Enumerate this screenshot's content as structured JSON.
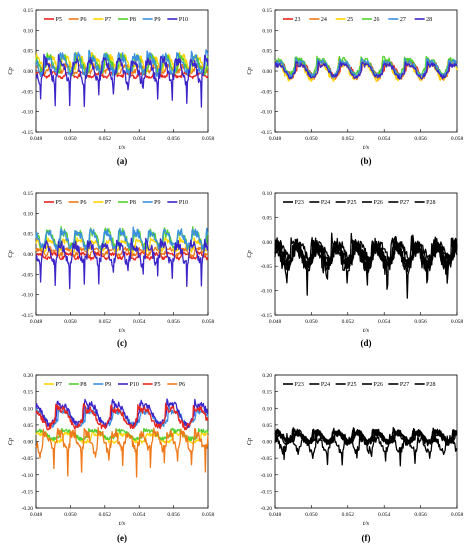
{
  "figure": {
    "panel_labels": [
      "(a)",
      "(b)",
      "(c)",
      "(d)",
      "(e)",
      "(f)"
    ]
  },
  "colors": {
    "P5": "#e8251f",
    "P6": "#f07a1a",
    "P7": "#ffd400",
    "P8": "#52d02e",
    "P9": "#3b8fe0",
    "P10": "#3b25c8",
    "23": "#e8251f",
    "24": "#f07a1a",
    "25": "#ffd400",
    "26": "#52d02e",
    "27": "#3b8fe0",
    "28": "#3b25c8"
  },
  "chart_data": [
    {
      "type": "line",
      "panel": "(a)",
      "xlabel": "t/s",
      "ylabel": "Cp",
      "xlim": [
        0.048,
        0.058
      ],
      "ylim": [
        -0.15,
        0.15
      ],
      "xticks": [
        "0.048",
        "0.050",
        "0.052",
        "0.054",
        "0.056",
        "0.058"
      ],
      "yticks": [
        "-0.15",
        "-0.10",
        "-0.05",
        "0.00",
        "0.05",
        "0.10",
        "0.15"
      ],
      "legend": [
        "P5",
        "P6",
        "P7",
        "P8",
        "P9",
        "P10"
      ],
      "legend_position": "top",
      "series": [
        {
          "name": "P5",
          "mean": -0.01,
          "amp": 0.008,
          "spike": 0,
          "period": 0.00085,
          "phase": 0.0,
          "noise": 0.004
        },
        {
          "name": "P6",
          "mean": 0.005,
          "amp": 0.012,
          "spike": 0,
          "period": 0.00085,
          "phase": 0.1,
          "noise": 0.006
        },
        {
          "name": "P7",
          "mean": 0.02,
          "amp": 0.025,
          "spike": 0,
          "period": 0.00085,
          "phase": 0.2,
          "noise": 0.008
        },
        {
          "name": "P8",
          "mean": 0.015,
          "amp": 0.028,
          "spike": 0,
          "period": 0.00085,
          "phase": 0.3,
          "noise": 0.01
        },
        {
          "name": "P9",
          "mean": 0.015,
          "amp": 0.035,
          "spike": 0,
          "period": 0.00085,
          "phase": 0.4,
          "noise": 0.012
        },
        {
          "name": "P10",
          "mean": 0.0,
          "amp": 0.04,
          "spike": -0.075,
          "period": 0.00085,
          "phase": 0.5,
          "noise": 0.012
        }
      ]
    },
    {
      "type": "line",
      "panel": "(b)",
      "xlabel": "t/s",
      "ylabel": "Cp",
      "xlim": [
        0.048,
        0.058
      ],
      "ylim": [
        -0.15,
        0.15
      ],
      "xticks": [
        "0.048",
        "0.050",
        "0.052",
        "0.054",
        "0.056",
        "0.058"
      ],
      "yticks": [
        "-0.15",
        "-0.10",
        "-0.05",
        "0.00",
        "0.05",
        "0.10",
        "0.15"
      ],
      "legend": [
        "23",
        "24",
        "25",
        "26",
        "27",
        "28"
      ],
      "legend_position": "top",
      "series": [
        {
          "name": "23",
          "mean": 0.005,
          "amp": 0.025,
          "spike": 0,
          "period": 0.0012,
          "phase": 0.0,
          "noise": 0.005
        },
        {
          "name": "24",
          "mean": 0.0,
          "amp": 0.03,
          "spike": 0,
          "period": 0.0012,
          "phase": 0.05,
          "noise": 0.006
        },
        {
          "name": "25",
          "mean": 0.0,
          "amp": 0.032,
          "spike": 0,
          "period": 0.0012,
          "phase": 0.1,
          "noise": 0.007
        },
        {
          "name": "26",
          "mean": 0.01,
          "amp": 0.03,
          "spike": 0,
          "period": 0.0012,
          "phase": 0.08,
          "noise": 0.006
        },
        {
          "name": "27",
          "mean": 0.005,
          "amp": 0.028,
          "spike": 0,
          "period": 0.0012,
          "phase": 0.06,
          "noise": 0.006
        },
        {
          "name": "28",
          "mean": 0.0,
          "amp": 0.025,
          "spike": 0,
          "period": 0.0012,
          "phase": 0.04,
          "noise": 0.005
        }
      ]
    },
    {
      "type": "line",
      "panel": "(c)",
      "xlabel": "t/s",
      "ylabel": "Cp",
      "xlim": [
        0.048,
        0.058
      ],
      "ylim": [
        -0.15,
        0.15
      ],
      "xticks": [
        "0.048",
        "0.050",
        "0.052",
        "0.054",
        "0.056",
        "0.058"
      ],
      "yticks": [
        "-0.15",
        "-0.10",
        "-0.05",
        "0.00",
        "0.05",
        "0.10",
        "0.15"
      ],
      "legend": [
        "P5",
        "P6",
        "P7",
        "P8",
        "P9",
        "P10"
      ],
      "legend_position": "top",
      "series": [
        {
          "name": "P5",
          "mean": -0.005,
          "amp": 0.01,
          "spike": 0,
          "period": 0.00085,
          "phase": 0.0,
          "noise": 0.004
        },
        {
          "name": "P6",
          "mean": 0.005,
          "amp": 0.012,
          "spike": 0,
          "period": 0.00085,
          "phase": 0.1,
          "noise": 0.005
        },
        {
          "name": "P7",
          "mean": 0.02,
          "amp": 0.02,
          "spike": 0,
          "period": 0.00085,
          "phase": 0.2,
          "noise": 0.006
        },
        {
          "name": "P8",
          "mean": 0.035,
          "amp": 0.03,
          "spike": 0,
          "period": 0.00085,
          "phase": 0.3,
          "noise": 0.01
        },
        {
          "name": "P9",
          "mean": 0.035,
          "amp": 0.03,
          "spike": 0,
          "period": 0.00085,
          "phase": 0.35,
          "noise": 0.01
        },
        {
          "name": "P10",
          "mean": 0.0,
          "amp": 0.035,
          "spike": -0.07,
          "period": 0.00085,
          "phase": 0.5,
          "noise": 0.012
        }
      ]
    },
    {
      "type": "line",
      "panel": "(d)",
      "xlabel": "t/s",
      "ylabel": "Cp",
      "xlim": [
        0.048,
        0.058
      ],
      "ylim": [
        -0.15,
        0.1
      ],
      "xticks": [
        "0.048",
        "0.050",
        "0.052",
        "0.054",
        "0.056",
        "0.058"
      ],
      "yticks": [
        "-0.15",
        "-0.10",
        "-0.05",
        "0.00",
        "0.05",
        "0.10"
      ],
      "legend": [
        "P23",
        "P24",
        "P25",
        "P26",
        "P27",
        "P28"
      ],
      "legend_position": "top",
      "series": [
        {
          "name": "P23",
          "mean": -0.02,
          "amp": 0.025,
          "spike": 0,
          "period": 0.0011,
          "phase": 0.0,
          "noise": 0.008
        },
        {
          "name": "P24",
          "mean": -0.025,
          "amp": 0.025,
          "spike": 0,
          "period": 0.0011,
          "phase": 0.05,
          "noise": 0.008
        },
        {
          "name": "P25",
          "mean": -0.03,
          "amp": 0.028,
          "spike": 0,
          "period": 0.0011,
          "phase": 0.1,
          "noise": 0.009
        },
        {
          "name": "P26",
          "mean": -0.03,
          "amp": 0.03,
          "spike": 0,
          "period": 0.0011,
          "phase": 0.12,
          "noise": 0.01
        },
        {
          "name": "P27",
          "mean": -0.035,
          "amp": 0.03,
          "spike": 0,
          "period": 0.0011,
          "phase": 0.14,
          "noise": 0.012
        },
        {
          "name": "P28",
          "mean": -0.03,
          "amp": 0.04,
          "spike": -0.06,
          "period": 0.0011,
          "phase": 0.2,
          "noise": 0.018
        }
      ]
    },
    {
      "type": "line",
      "panel": "(e)",
      "xlabel": "t/s",
      "ylabel": "Cp",
      "xlim": [
        0.048,
        0.058
      ],
      "ylim": [
        -0.2,
        0.2
      ],
      "xticks": [
        "0.048",
        "0.050",
        "0.052",
        "0.054",
        "0.056",
        "0.058"
      ],
      "yticks": [
        "-0.20",
        "-0.15",
        "-0.10",
        "-0.05",
        "0.00",
        "0.05",
        "0.10",
        "0.15",
        "0.20"
      ],
      "legend": [
        "P7",
        "P8",
        "P9",
        "P10",
        "P5",
        "P6"
      ],
      "legend_position": "top",
      "series": [
        {
          "name": "P7",
          "mean": 0.01,
          "amp": 0.02,
          "spike": 0,
          "period": 0.0016,
          "phase": 0.0,
          "noise": 0.005
        },
        {
          "name": "P8",
          "mean": 0.02,
          "amp": 0.02,
          "spike": 0,
          "period": 0.0016,
          "phase": 0.1,
          "noise": 0.006
        },
        {
          "name": "P9",
          "mean": 0.07,
          "amp": 0.035,
          "spike": 0,
          "period": 0.0016,
          "phase": 0.2,
          "noise": 0.008
        },
        {
          "name": "P10",
          "mean": 0.08,
          "amp": 0.05,
          "spike": 0,
          "period": 0.0016,
          "phase": 0.25,
          "noise": 0.01
        },
        {
          "name": "P5",
          "mean": 0.07,
          "amp": 0.045,
          "spike": 0,
          "period": 0.0016,
          "phase": 0.3,
          "noise": 0.01
        },
        {
          "name": "P6",
          "mean": 0.0,
          "amp": 0.04,
          "spike": -0.08,
          "period": 0.0008,
          "phase": 0.5,
          "noise": 0.014
        }
      ]
    },
    {
      "type": "line",
      "panel": "(f)",
      "xlabel": "t/s",
      "ylabel": "Cp",
      "xlim": [
        0.048,
        0.058
      ],
      "ylim": [
        -0.2,
        0.2
      ],
      "xticks": [
        "0.048",
        "0.050",
        "0.052",
        "0.054",
        "0.056",
        "0.058"
      ],
      "yticks": [
        "-0.20",
        "-0.15",
        "-0.10",
        "-0.05",
        "0.00",
        "0.05",
        "0.10",
        "0.15",
        "0.20"
      ],
      "legend": [
        "P23",
        "P24",
        "P25",
        "P26",
        "P27",
        "P28"
      ],
      "legend_position": "top",
      "series": [
        {
          "name": "P23",
          "mean": 0.01,
          "amp": 0.02,
          "spike": 0,
          "period": 0.0011,
          "phase": 0.0,
          "noise": 0.006
        },
        {
          "name": "P24",
          "mean": 0.01,
          "amp": 0.02,
          "spike": 0,
          "period": 0.0011,
          "phase": 0.05,
          "noise": 0.006
        },
        {
          "name": "P25",
          "mean": 0.015,
          "amp": 0.025,
          "spike": 0,
          "period": 0.0011,
          "phase": 0.1,
          "noise": 0.007
        },
        {
          "name": "P26",
          "mean": 0.015,
          "amp": 0.025,
          "spike": 0,
          "period": 0.0011,
          "phase": 0.12,
          "noise": 0.007
        },
        {
          "name": "P27",
          "mean": 0.01,
          "amp": 0.025,
          "spike": 0,
          "period": 0.0011,
          "phase": 0.14,
          "noise": 0.008
        },
        {
          "name": "P28",
          "mean": -0.01,
          "amp": 0.03,
          "spike": -0.06,
          "period": 0.0008,
          "phase": 0.2,
          "noise": 0.012
        }
      ]
    }
  ]
}
